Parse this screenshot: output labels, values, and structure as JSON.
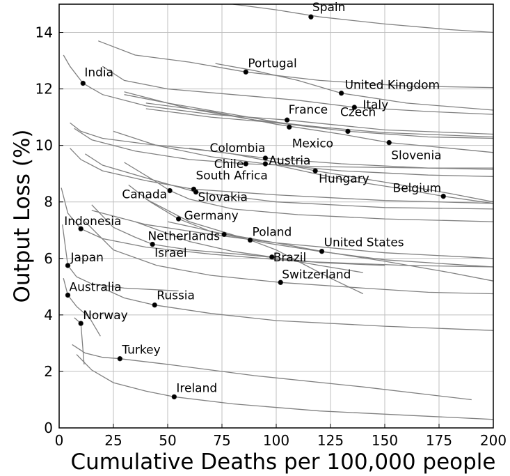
{
  "chart_data": {
    "type": "line",
    "xlabel": "Cumulative Deaths per 100,000 people",
    "ylabel": "Output Loss (%)",
    "xlim": [
      0,
      200
    ],
    "ylim": [
      0,
      15
    ],
    "xticks": [
      "0",
      "25",
      "50",
      "75",
      "100",
      "125",
      "150",
      "175",
      "200"
    ],
    "yticks": [
      "0",
      "2",
      "4",
      "6",
      "8",
      "10",
      "12",
      "14"
    ],
    "grid": true,
    "colors": {
      "curve": "#808080",
      "point": "#000000",
      "grid": "#bfbfbf",
      "frame": "#000000"
    },
    "points": [
      {
        "label": "Spain",
        "x": 116,
        "y": 14.55
      },
      {
        "label": "Portugal",
        "x": 86,
        "y": 12.6
      },
      {
        "label": "India",
        "x": 11,
        "y": 12.2
      },
      {
        "label": "United Kingdom",
        "x": 130,
        "y": 11.85
      },
      {
        "label": "Italy",
        "x": 136,
        "y": 11.35
      },
      {
        "label": "France",
        "x": 105,
        "y": 10.9
      },
      {
        "label": "Mexico",
        "x": 106,
        "y": 10.65
      },
      {
        "label": "Czech",
        "x": 133,
        "y": 10.5
      },
      {
        "label": "Slovenia",
        "x": 152,
        "y": 10.1
      },
      {
        "label": "Colombia",
        "x": 95,
        "y": 9.55
      },
      {
        "label": "Chile",
        "x": 86,
        "y": 9.35
      },
      {
        "label": "Austria",
        "x": 95,
        "y": 9.35
      },
      {
        "label": "Hungary",
        "x": 118,
        "y": 9.1
      },
      {
        "label": "South Africa",
        "x": 62,
        "y": 8.45
      },
      {
        "label": "Slovakia",
        "x": 63,
        "y": 8.35
      },
      {
        "label": "Canada",
        "x": 51,
        "y": 8.4
      },
      {
        "label": "Belgium",
        "x": 177,
        "y": 8.2
      },
      {
        "label": "Germany",
        "x": 55,
        "y": 7.4
      },
      {
        "label": "Indonesia",
        "x": 10,
        "y": 7.05
      },
      {
        "label": "Netherlands",
        "x": 76,
        "y": 6.85
      },
      {
        "label": "Poland",
        "x": 88,
        "y": 6.65
      },
      {
        "label": "Israel",
        "x": 43,
        "y": 6.5
      },
      {
        "label": "United States",
        "x": 121,
        "y": 6.25
      },
      {
        "label": "Brazil",
        "x": 98,
        "y": 6.05
      },
      {
        "label": "Japan",
        "x": 4,
        "y": 5.75
      },
      {
        "label": "Switzerland",
        "x": 102,
        "y": 5.15
      },
      {
        "label": "Australia",
        "x": 4,
        "y": 4.7
      },
      {
        "label": "Russia",
        "x": 44,
        "y": 4.35
      },
      {
        "label": "Norway",
        "x": 10,
        "y": 3.7
      },
      {
        "label": "Turkey",
        "x": 28,
        "y": 2.45
      },
      {
        "label": "Ireland",
        "x": 53,
        "y": 1.1
      }
    ],
    "curves": [
      [
        [
          80,
          15
        ],
        [
          100,
          14.8
        ],
        [
          120,
          14.55
        ],
        [
          150,
          14.3
        ],
        [
          180,
          14.1
        ],
        [
          200,
          14.0
        ]
      ],
      [
        [
          18,
          13.7
        ],
        [
          35,
          13.2
        ],
        [
          60,
          12.95
        ],
        [
          86,
          12.6
        ],
        [
          120,
          12.3
        ],
        [
          160,
          12.1
        ],
        [
          200,
          12.05
        ]
      ],
      [
        [
          72,
          12.9
        ],
        [
          90,
          12.65
        ],
        [
          110,
          12.3
        ],
        [
          130,
          11.85
        ],
        [
          160,
          11.5
        ],
        [
          200,
          11.25
        ]
      ],
      [
        [
          2,
          13.2
        ],
        [
          5,
          12.8
        ],
        [
          11,
          12.2
        ],
        [
          20,
          11.8
        ],
        [
          40,
          11.4
        ],
        [
          70,
          11.1
        ],
        [
          105,
          10.9
        ],
        [
          150,
          10.55
        ],
        [
          200,
          10.4
        ]
      ],
      [
        [
          20,
          12.8
        ],
        [
          30,
          12.3
        ],
        [
          50,
          12.0
        ],
        [
          80,
          11.8
        ],
        [
          110,
          11.6
        ],
        [
          136,
          11.35
        ],
        [
          170,
          11.2
        ],
        [
          200,
          11.1
        ]
      ],
      [
        [
          30,
          11.8
        ],
        [
          50,
          11.5
        ],
        [
          80,
          11.1
        ],
        [
          106,
          10.75
        ]
      ],
      [
        [
          30,
          11.9
        ],
        [
          60,
          11.3
        ],
        [
          90,
          10.9
        ],
        [
          120,
          10.65
        ],
        [
          150,
          10.45
        ],
        [
          200,
          10.3
        ]
      ],
      [
        [
          40,
          11.3
        ],
        [
          70,
          11.0
        ],
        [
          100,
          10.8
        ],
        [
          133,
          10.5
        ],
        [
          170,
          10.3
        ],
        [
          200,
          10.25
        ]
      ],
      [
        [
          40,
          11.5
        ],
        [
          70,
          11.2
        ],
        [
          100,
          10.75
        ],
        [
          130,
          10.4
        ],
        [
          152,
          10.1
        ],
        [
          180,
          9.9
        ],
        [
          200,
          9.75
        ]
      ],
      [
        [
          5,
          10.8
        ],
        [
          10,
          10.5
        ],
        [
          20,
          10.25
        ],
        [
          40,
          10.05
        ],
        [
          70,
          9.8
        ],
        [
          95,
          9.55
        ],
        [
          130,
          9.35
        ],
        [
          170,
          9.2
        ],
        [
          200,
          9.15
        ]
      ],
      [
        [
          7,
          10.6
        ],
        [
          15,
          10.2
        ],
        [
          35,
          9.8
        ],
        [
          60,
          9.5
        ],
        [
          86,
          9.35
        ],
        [
          120,
          9.25
        ],
        [
          170,
          9.2
        ],
        [
          200,
          9.2
        ]
      ],
      [
        [
          25,
          10.5
        ],
        [
          45,
          10.0
        ],
        [
          70,
          9.6
        ],
        [
          95,
          9.35
        ],
        [
          130,
          9.1
        ],
        [
          170,
          8.95
        ],
        [
          200,
          8.9
        ]
      ],
      [
        [
          60,
          9.9
        ],
        [
          80,
          9.7
        ],
        [
          100,
          9.4
        ],
        [
          118,
          9.1
        ],
        [
          150,
          8.7
        ],
        [
          180,
          8.3
        ],
        [
          200,
          8.0
        ]
      ],
      [
        [
          5,
          9.9
        ],
        [
          10,
          9.5
        ],
        [
          20,
          9.1
        ],
        [
          40,
          8.75
        ],
        [
          62,
          8.45
        ],
        [
          100,
          8.25
        ],
        [
          150,
          8.05
        ],
        [
          200,
          7.95
        ]
      ],
      [
        [
          12,
          9.7
        ],
        [
          20,
          9.3
        ],
        [
          40,
          8.85
        ],
        [
          63,
          8.35
        ],
        [
          100,
          8.0
        ],
        [
          150,
          7.8
        ],
        [
          200,
          7.75
        ]
      ],
      [
        [
          30,
          9.4
        ],
        [
          45,
          8.7
        ],
        [
          51,
          8.4
        ],
        [
          60,
          8.1
        ],
        [
          80,
          7.75
        ],
        [
          110,
          7.55
        ],
        [
          150,
          7.4
        ],
        [
          200,
          7.3
        ]
      ],
      [
        [
          100,
          9.3
        ],
        [
          130,
          8.8
        ],
        [
          155,
          8.5
        ],
        [
          177,
          8.2
        ],
        [
          200,
          7.95
        ]
      ],
      [
        [
          32,
          8.6
        ],
        [
          42,
          8.0
        ],
        [
          55,
          7.4
        ],
        [
          70,
          6.95
        ],
        [
          100,
          6.55
        ],
        [
          150,
          6.2
        ],
        [
          200,
          6.0
        ]
      ],
      [
        [
          1,
          8.5
        ],
        [
          4,
          7.6
        ],
        [
          10,
          7.05
        ],
        [
          20,
          6.7
        ],
        [
          40,
          6.4
        ],
        [
          70,
          6.15
        ],
        [
          110,
          5.9
        ],
        [
          160,
          5.75
        ],
        [
          200,
          5.7
        ]
      ],
      [
        [
          50,
          7.3
        ],
        [
          65,
          7.05
        ],
        [
          76,
          6.85
        ],
        [
          95,
          6.55
        ],
        [
          120,
          6.25
        ],
        [
          150,
          5.95
        ],
        [
          200,
          5.7
        ]
      ],
      [
        [
          40,
          8.1
        ],
        [
          60,
          7.3
        ],
        [
          75,
          6.95
        ],
        [
          88,
          6.65
        ],
        [
          100,
          6.3
        ],
        [
          110,
          5.9
        ],
        [
          125,
          5.3
        ],
        [
          140,
          4.75
        ]
      ],
      [
        [
          15,
          7.9
        ],
        [
          25,
          7.1
        ],
        [
          35,
          6.75
        ],
        [
          43,
          6.5
        ],
        [
          60,
          6.3
        ],
        [
          90,
          6.1
        ],
        [
          120,
          5.85
        ],
        [
          150,
          5.75
        ]
      ],
      [
        [
          15,
          7.7
        ],
        [
          40,
          7.2
        ],
        [
          70,
          6.85
        ],
        [
          100,
          6.55
        ],
        [
          121,
          6.25
        ],
        [
          150,
          5.9
        ],
        [
          180,
          5.5
        ],
        [
          200,
          5.2
        ]
      ],
      [
        [
          35,
          7.3
        ],
        [
          60,
          6.6
        ],
        [
          80,
          6.25
        ],
        [
          98,
          6.05
        ],
        [
          120,
          5.75
        ],
        [
          140,
          5.5
        ]
      ],
      [
        [
          1.5,
          7.2
        ],
        [
          4,
          5.75
        ],
        [
          8,
          5.35
        ],
        [
          15,
          5.1
        ],
        [
          30,
          4.95
        ],
        [
          55,
          4.85
        ]
      ],
      [
        [
          12,
          7.3
        ],
        [
          25,
          6.3
        ],
        [
          45,
          5.75
        ],
        [
          70,
          5.4
        ],
        [
          102,
          5.15
        ],
        [
          140,
          4.95
        ],
        [
          170,
          4.8
        ],
        [
          200,
          4.75
        ]
      ],
      [
        [
          2,
          5.3
        ],
        [
          4,
          4.7
        ],
        [
          8,
          4.3
        ],
        [
          14,
          3.9
        ],
        [
          19,
          3.25
        ]
      ],
      [
        [
          20,
          4.95
        ],
        [
          30,
          4.6
        ],
        [
          44,
          4.35
        ],
        [
          70,
          4.05
        ],
        [
          100,
          3.8
        ],
        [
          150,
          3.6
        ],
        [
          200,
          3.45
        ]
      ],
      [
        [
          7,
          3.9
        ],
        [
          10,
          3.7
        ],
        [
          11.5,
          2.25
        ]
      ],
      [
        [
          6,
          2.95
        ],
        [
          12,
          2.65
        ],
        [
          20,
          2.5
        ],
        [
          28,
          2.45
        ],
        [
          50,
          2.25
        ],
        [
          90,
          1.85
        ],
        [
          140,
          1.45
        ],
        [
          190,
          1.0
        ]
      ],
      [
        [
          8,
          2.6
        ],
        [
          15,
          2.05
        ],
        [
          25,
          1.6
        ],
        [
          40,
          1.3
        ],
        [
          53,
          1.1
        ],
        [
          80,
          0.85
        ],
        [
          120,
          0.6
        ],
        [
          160,
          0.45
        ],
        [
          200,
          0.3
        ]
      ]
    ]
  }
}
